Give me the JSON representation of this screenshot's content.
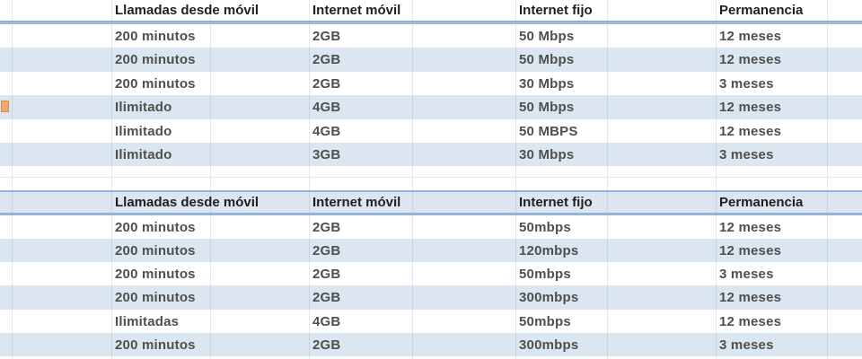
{
  "colors": {
    "row_alt_fill": "#dce6f1",
    "header_separator": "#95b3d7",
    "gridline": "#dbe2ee",
    "header_text": "#1f1f1f",
    "data_text": "#4f4f4f",
    "marker_fill": "#eba86f"
  },
  "marker": {
    "name": "orange-cell-fragment"
  },
  "tables": [
    {
      "columns": [
        "Llamadas desde móvil",
        "Internet móvil",
        "Internet fijo",
        "Permanencia"
      ],
      "rows": [
        [
          "200 minutos",
          "2GB",
          "50 Mbps",
          "12 meses"
        ],
        [
          "200 minutos",
          "2GB",
          "50 Mbps",
          "12 meses"
        ],
        [
          "200 minutos",
          "2GB",
          "30 Mbps",
          "3 meses"
        ],
        [
          "Ilimitado",
          "4GB",
          "50 Mbps",
          "12 meses"
        ],
        [
          "Ilimitado",
          "4GB",
          "50 MBPS",
          "12 meses"
        ],
        [
          "Ilimitado",
          "3GB",
          "30 Mbps",
          "3 meses"
        ]
      ]
    },
    {
      "columns": [
        "Llamadas desde móvil",
        "Internet móvil",
        "Internet fijo",
        "Permanencia"
      ],
      "rows": [
        [
          "200 minutos",
          "2GB",
          "50mbps",
          "12 meses"
        ],
        [
          "200 minutos",
          "2GB",
          "120mbps",
          "12 meses"
        ],
        [
          "200 minutos",
          "2GB",
          "50mbps",
          "3 meses"
        ],
        [
          "200 minutos",
          "2GB",
          "300mbps",
          "12 meses"
        ],
        [
          "Ilimitadas",
          "4GB",
          "50mbps",
          "12 meses"
        ],
        [
          "200 minutos",
          "2GB",
          "300mbps",
          "3 meses"
        ]
      ]
    }
  ]
}
